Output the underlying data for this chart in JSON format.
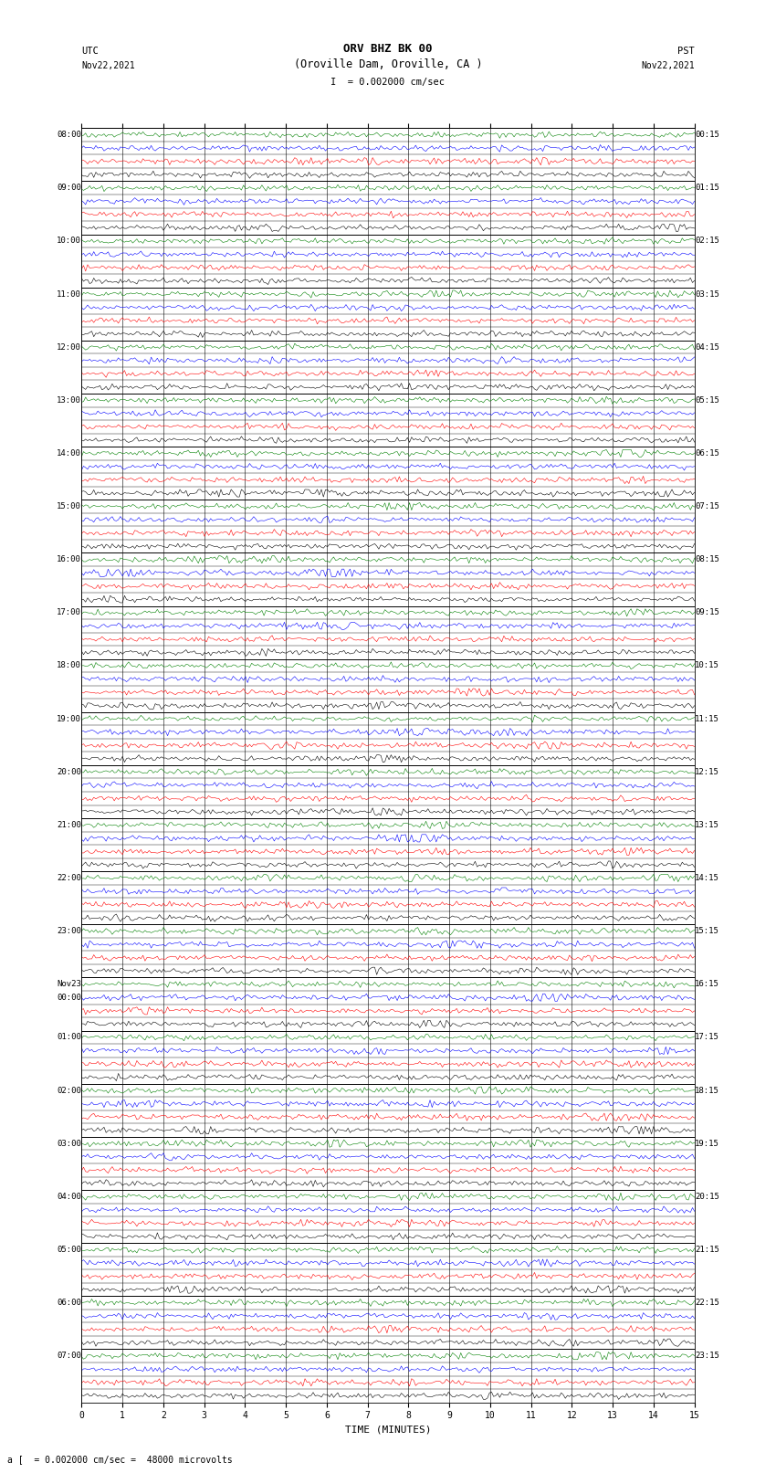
{
  "title_line1": "ORV BHZ BK 00",
  "title_line2": "(Oroville Dam, Oroville, CA )",
  "scale_label": "I  = 0.002000 cm/sec",
  "left_timezone": "UTC",
  "right_timezone": "PST",
  "left_date": "Nov22,2021",
  "right_date": "Nov22,2021",
  "xlabel": "TIME (MINUTES)",
  "bottom_note": "a [  = 0.002000 cm/sec =  48000 microvolts",
  "left_labels": [
    "08:00",
    "",
    "",
    "",
    "09:00",
    "",
    "",
    "",
    "10:00",
    "",
    "",
    "",
    "11:00",
    "",
    "",
    "",
    "12:00",
    "",
    "",
    "",
    "13:00",
    "",
    "",
    "",
    "14:00",
    "",
    "",
    "",
    "15:00",
    "",
    "",
    "",
    "16:00",
    "",
    "",
    "",
    "17:00",
    "",
    "",
    "",
    "18:00",
    "",
    "",
    "",
    "19:00",
    "",
    "",
    "",
    "20:00",
    "",
    "",
    "",
    "21:00",
    "",
    "",
    "",
    "22:00",
    "",
    "",
    "",
    "23:00",
    "",
    "",
    "",
    "Nov23",
    "00:00",
    "",
    "",
    "01:00",
    "",
    "",
    "",
    "02:00",
    "",
    "",
    "",
    "03:00",
    "",
    "",
    "",
    "04:00",
    "",
    "",
    "",
    "05:00",
    "",
    "",
    "",
    "06:00",
    "",
    "",
    "",
    "07:00",
    "",
    "",
    ""
  ],
  "left_label_extra": [
    16,
    "Nov23"
  ],
  "right_labels": [
    "00:15",
    "",
    "",
    "",
    "01:15",
    "",
    "",
    "",
    "02:15",
    "",
    "",
    "",
    "03:15",
    "",
    "",
    "",
    "04:15",
    "",
    "",
    "",
    "05:15",
    "",
    "",
    "",
    "06:15",
    "",
    "",
    "",
    "07:15",
    "",
    "",
    "",
    "08:15",
    "",
    "",
    "",
    "09:15",
    "",
    "",
    "",
    "10:15",
    "",
    "",
    "",
    "11:15",
    "",
    "",
    "",
    "12:15",
    "",
    "",
    "",
    "13:15",
    "",
    "",
    "",
    "14:15",
    "",
    "",
    "",
    "15:15",
    "",
    "",
    "",
    "16:15",
    "",
    "",
    "",
    "17:15",
    "",
    "",
    "",
    "18:15",
    "",
    "",
    "",
    "19:15",
    "",
    "",
    "",
    "20:15",
    "",
    "",
    "",
    "21:15",
    "",
    "",
    "",
    "22:15",
    "",
    "",
    "",
    "23:15",
    "",
    "",
    ""
  ],
  "trace_colors": [
    "black",
    "red",
    "blue",
    "green"
  ],
  "num_hours": 24,
  "rows_per_hour": 4,
  "x_ticks": [
    0,
    1,
    2,
    3,
    4,
    5,
    6,
    7,
    8,
    9,
    10,
    11,
    12,
    13,
    14,
    15
  ],
  "x_lim": [
    0,
    15
  ],
  "bg_color": "white",
  "trace_amplitude": 0.28,
  "trace_noise_scale": 0.1,
  "seed": 42,
  "fig_width": 8.5,
  "fig_height": 16.13,
  "dpi": 100
}
